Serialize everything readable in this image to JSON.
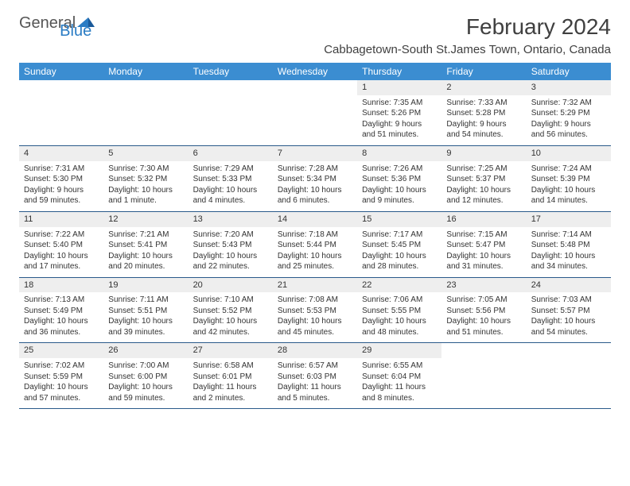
{
  "logo": {
    "text1": "General",
    "text2": "Blue"
  },
  "title": "February 2024",
  "location": "Cabbagetown-South St.James Town, Ontario, Canada",
  "colors": {
    "header_bg": "#3b8dd1",
    "header_text": "#ffffff",
    "daynum_bg": "#eeeeee",
    "border": "#2a5a8a",
    "text": "#333333",
    "logo_gray": "#555555",
    "logo_blue": "#2a7cc4"
  },
  "day_headers": [
    "Sunday",
    "Monday",
    "Tuesday",
    "Wednesday",
    "Thursday",
    "Friday",
    "Saturday"
  ],
  "weeks": [
    [
      null,
      null,
      null,
      null,
      {
        "n": "1",
        "sr": "Sunrise: 7:35 AM",
        "ss": "Sunset: 5:26 PM",
        "dl1": "Daylight: 9 hours",
        "dl2": "and 51 minutes."
      },
      {
        "n": "2",
        "sr": "Sunrise: 7:33 AM",
        "ss": "Sunset: 5:28 PM",
        "dl1": "Daylight: 9 hours",
        "dl2": "and 54 minutes."
      },
      {
        "n": "3",
        "sr": "Sunrise: 7:32 AM",
        "ss": "Sunset: 5:29 PM",
        "dl1": "Daylight: 9 hours",
        "dl2": "and 56 minutes."
      }
    ],
    [
      {
        "n": "4",
        "sr": "Sunrise: 7:31 AM",
        "ss": "Sunset: 5:30 PM",
        "dl1": "Daylight: 9 hours",
        "dl2": "and 59 minutes."
      },
      {
        "n": "5",
        "sr": "Sunrise: 7:30 AM",
        "ss": "Sunset: 5:32 PM",
        "dl1": "Daylight: 10 hours",
        "dl2": "and 1 minute."
      },
      {
        "n": "6",
        "sr": "Sunrise: 7:29 AM",
        "ss": "Sunset: 5:33 PM",
        "dl1": "Daylight: 10 hours",
        "dl2": "and 4 minutes."
      },
      {
        "n": "7",
        "sr": "Sunrise: 7:28 AM",
        "ss": "Sunset: 5:34 PM",
        "dl1": "Daylight: 10 hours",
        "dl2": "and 6 minutes."
      },
      {
        "n": "8",
        "sr": "Sunrise: 7:26 AM",
        "ss": "Sunset: 5:36 PM",
        "dl1": "Daylight: 10 hours",
        "dl2": "and 9 minutes."
      },
      {
        "n": "9",
        "sr": "Sunrise: 7:25 AM",
        "ss": "Sunset: 5:37 PM",
        "dl1": "Daylight: 10 hours",
        "dl2": "and 12 minutes."
      },
      {
        "n": "10",
        "sr": "Sunrise: 7:24 AM",
        "ss": "Sunset: 5:39 PM",
        "dl1": "Daylight: 10 hours",
        "dl2": "and 14 minutes."
      }
    ],
    [
      {
        "n": "11",
        "sr": "Sunrise: 7:22 AM",
        "ss": "Sunset: 5:40 PM",
        "dl1": "Daylight: 10 hours",
        "dl2": "and 17 minutes."
      },
      {
        "n": "12",
        "sr": "Sunrise: 7:21 AM",
        "ss": "Sunset: 5:41 PM",
        "dl1": "Daylight: 10 hours",
        "dl2": "and 20 minutes."
      },
      {
        "n": "13",
        "sr": "Sunrise: 7:20 AM",
        "ss": "Sunset: 5:43 PM",
        "dl1": "Daylight: 10 hours",
        "dl2": "and 22 minutes."
      },
      {
        "n": "14",
        "sr": "Sunrise: 7:18 AM",
        "ss": "Sunset: 5:44 PM",
        "dl1": "Daylight: 10 hours",
        "dl2": "and 25 minutes."
      },
      {
        "n": "15",
        "sr": "Sunrise: 7:17 AM",
        "ss": "Sunset: 5:45 PM",
        "dl1": "Daylight: 10 hours",
        "dl2": "and 28 minutes."
      },
      {
        "n": "16",
        "sr": "Sunrise: 7:15 AM",
        "ss": "Sunset: 5:47 PM",
        "dl1": "Daylight: 10 hours",
        "dl2": "and 31 minutes."
      },
      {
        "n": "17",
        "sr": "Sunrise: 7:14 AM",
        "ss": "Sunset: 5:48 PM",
        "dl1": "Daylight: 10 hours",
        "dl2": "and 34 minutes."
      }
    ],
    [
      {
        "n": "18",
        "sr": "Sunrise: 7:13 AM",
        "ss": "Sunset: 5:49 PM",
        "dl1": "Daylight: 10 hours",
        "dl2": "and 36 minutes."
      },
      {
        "n": "19",
        "sr": "Sunrise: 7:11 AM",
        "ss": "Sunset: 5:51 PM",
        "dl1": "Daylight: 10 hours",
        "dl2": "and 39 minutes."
      },
      {
        "n": "20",
        "sr": "Sunrise: 7:10 AM",
        "ss": "Sunset: 5:52 PM",
        "dl1": "Daylight: 10 hours",
        "dl2": "and 42 minutes."
      },
      {
        "n": "21",
        "sr": "Sunrise: 7:08 AM",
        "ss": "Sunset: 5:53 PM",
        "dl1": "Daylight: 10 hours",
        "dl2": "and 45 minutes."
      },
      {
        "n": "22",
        "sr": "Sunrise: 7:06 AM",
        "ss": "Sunset: 5:55 PM",
        "dl1": "Daylight: 10 hours",
        "dl2": "and 48 minutes."
      },
      {
        "n": "23",
        "sr": "Sunrise: 7:05 AM",
        "ss": "Sunset: 5:56 PM",
        "dl1": "Daylight: 10 hours",
        "dl2": "and 51 minutes."
      },
      {
        "n": "24",
        "sr": "Sunrise: 7:03 AM",
        "ss": "Sunset: 5:57 PM",
        "dl1": "Daylight: 10 hours",
        "dl2": "and 54 minutes."
      }
    ],
    [
      {
        "n": "25",
        "sr": "Sunrise: 7:02 AM",
        "ss": "Sunset: 5:59 PM",
        "dl1": "Daylight: 10 hours",
        "dl2": "and 57 minutes."
      },
      {
        "n": "26",
        "sr": "Sunrise: 7:00 AM",
        "ss": "Sunset: 6:00 PM",
        "dl1": "Daylight: 10 hours",
        "dl2": "and 59 minutes."
      },
      {
        "n": "27",
        "sr": "Sunrise: 6:58 AM",
        "ss": "Sunset: 6:01 PM",
        "dl1": "Daylight: 11 hours",
        "dl2": "and 2 minutes."
      },
      {
        "n": "28",
        "sr": "Sunrise: 6:57 AM",
        "ss": "Sunset: 6:03 PM",
        "dl1": "Daylight: 11 hours",
        "dl2": "and 5 minutes."
      },
      {
        "n": "29",
        "sr": "Sunrise: 6:55 AM",
        "ss": "Sunset: 6:04 PM",
        "dl1": "Daylight: 11 hours",
        "dl2": "and 8 minutes."
      },
      null,
      null
    ]
  ]
}
